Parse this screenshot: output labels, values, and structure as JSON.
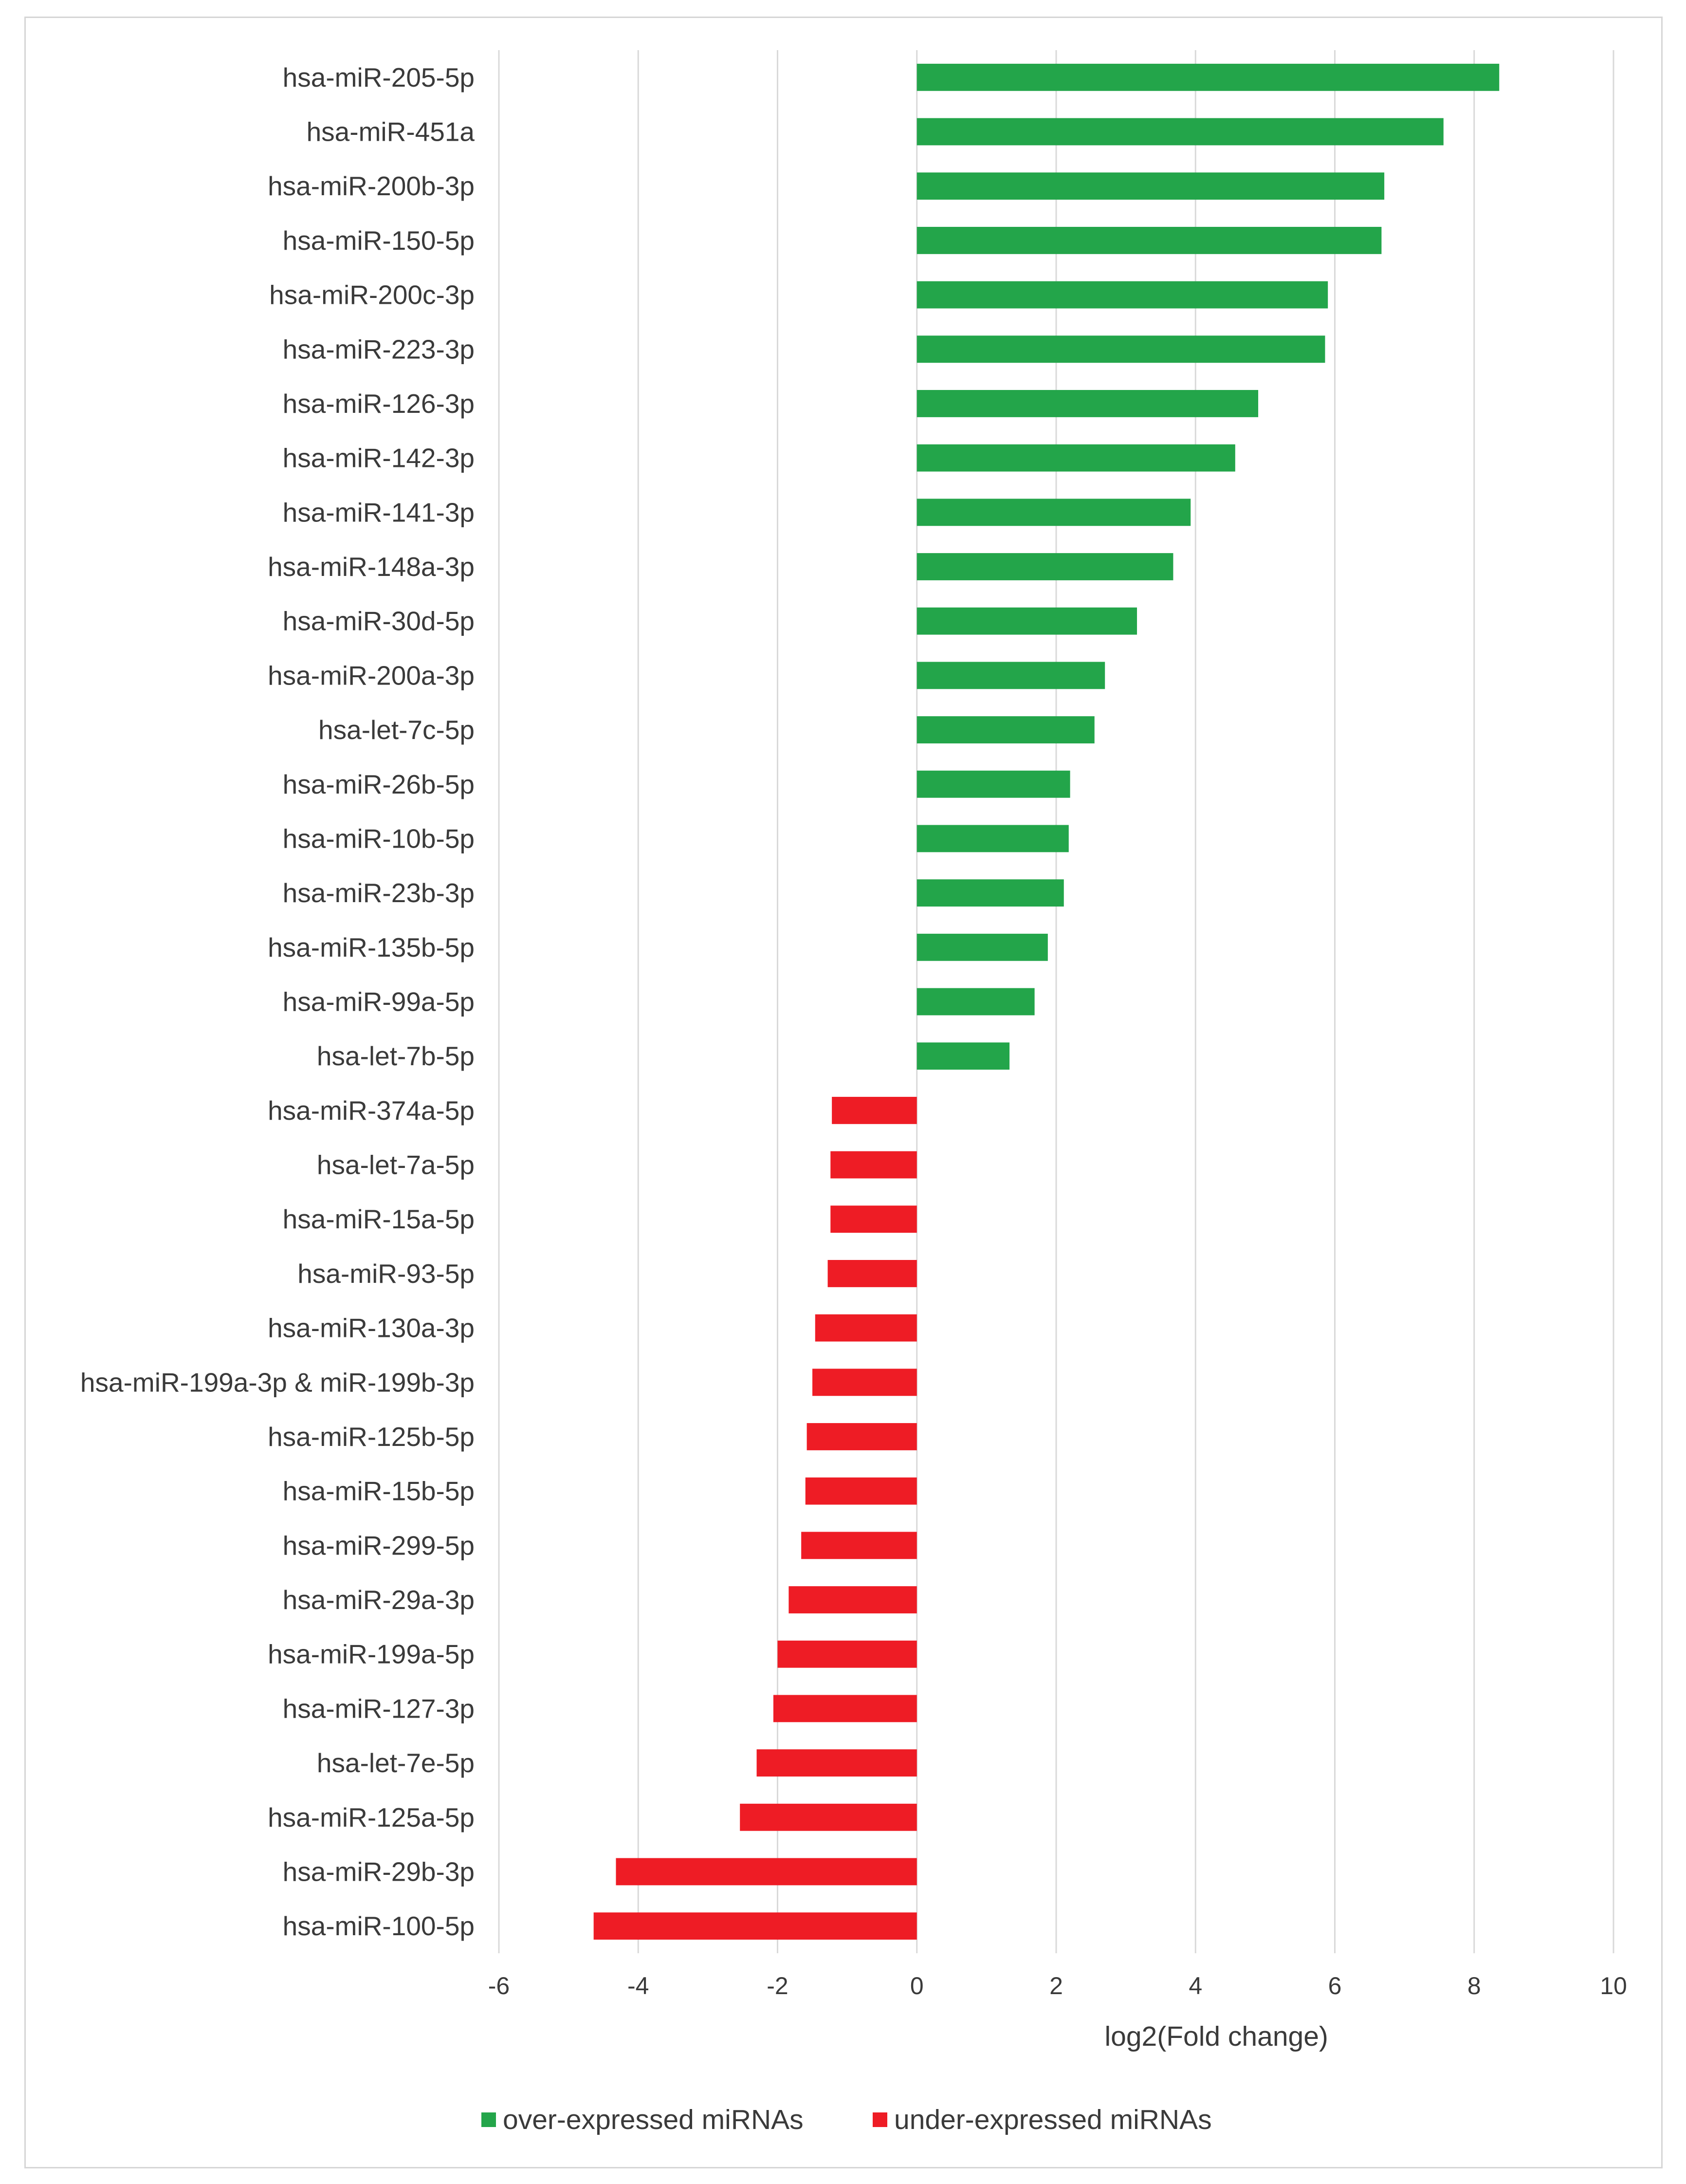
{
  "chart_data": {
    "type": "bar",
    "orientation": "horizontal",
    "title": "",
    "xlabel": "log2(Fold change)",
    "ylabel": "",
    "xlim": [
      -6,
      10
    ],
    "xticks": [
      -6,
      -4,
      -2,
      0,
      2,
      4,
      6,
      8,
      10
    ],
    "grid": "vertical",
    "legend_position": "bottom",
    "colors": {
      "over": "#23a54a",
      "under": "#ee1c25",
      "grid": "#d9d9d9"
    },
    "series": [
      {
        "name": "over-expressed miRNAs",
        "key": "over"
      },
      {
        "name": "under-expressed miRNAs",
        "key": "under"
      }
    ],
    "categories": [
      "hsa-miR-205-5p",
      "hsa-miR-451a",
      "hsa-miR-200b-3p",
      "hsa-miR-150-5p",
      "hsa-miR-200c-3p",
      "hsa-miR-223-3p",
      "hsa-miR-126-3p",
      "hsa-miR-142-3p",
      "hsa-miR-141-3p",
      "hsa-miR-148a-3p",
      "hsa-miR-30d-5p",
      "hsa-miR-200a-3p",
      "hsa-let-7c-5p",
      "hsa-miR-26b-5p",
      "hsa-miR-10b-5p",
      "hsa-miR-23b-3p",
      "hsa-miR-135b-5p",
      "hsa-miR-99a-5p",
      "hsa-let-7b-5p",
      "hsa-miR-374a-5p",
      "hsa-let-7a-5p",
      "hsa-miR-15a-5p",
      "hsa-miR-93-5p",
      "hsa-miR-130a-3p",
      "hsa-miR-199a-3p & miR-199b-3p",
      "hsa-miR-125b-5p",
      "hsa-miR-15b-5p",
      "hsa-miR-299-5p",
      "hsa-miR-29a-3p",
      "hsa-miR-199a-5p",
      "hsa-miR-127-3p",
      "hsa-let-7e-5p",
      "hsa-miR-125a-5p",
      "hsa-miR-29b-3p",
      "hsa-miR-100-5p"
    ],
    "values": [
      8.36,
      7.56,
      6.71,
      6.67,
      5.9,
      5.86,
      4.9,
      4.57,
      3.93,
      3.68,
      3.16,
      2.7,
      2.55,
      2.2,
      2.18,
      2.11,
      1.88,
      1.69,
      1.33,
      -1.22,
      -1.24,
      -1.24,
      -1.28,
      -1.46,
      -1.5,
      -1.58,
      -1.6,
      -1.66,
      -1.84,
      -2.0,
      -2.06,
      -2.3,
      -2.54,
      -4.32,
      -4.64
    ],
    "series_assignment": [
      "over",
      "over",
      "over",
      "over",
      "over",
      "over",
      "over",
      "over",
      "over",
      "over",
      "over",
      "over",
      "over",
      "over",
      "over",
      "over",
      "over",
      "over",
      "over",
      "under",
      "under",
      "under",
      "under",
      "under",
      "under",
      "under",
      "under",
      "under",
      "under",
      "under",
      "under",
      "under",
      "under",
      "under",
      "under"
    ]
  }
}
